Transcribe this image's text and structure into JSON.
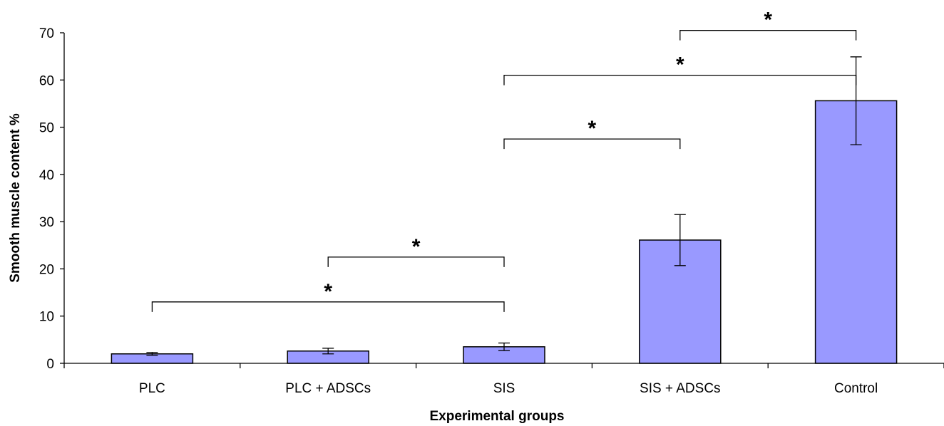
{
  "chart_data": {
    "type": "bar",
    "categories": [
      "PLC",
      "PLC + ADSCs",
      "SIS",
      "SIS + ADSCs",
      "Control"
    ],
    "values": [
      2.0,
      2.6,
      3.5,
      26.1,
      55.6
    ],
    "errors": [
      0.3,
      0.6,
      0.8,
      5.4,
      9.3
    ],
    "xlabel": "Experimental groups",
    "ylabel": "Smooth muscle content %",
    "ylim": [
      0,
      70
    ],
    "yticks": [
      "0",
      "10",
      "20",
      "30",
      "40",
      "50",
      "60",
      "70"
    ],
    "grid": false,
    "bar_color": "#9999ff",
    "significance": [
      {
        "from": "PLC",
        "to": "SIS",
        "y": 13,
        "label": "*"
      },
      {
        "from": "PLC + ADSCs",
        "to": "SIS",
        "y": 22.5,
        "label": "*"
      },
      {
        "from": "SIS",
        "to": "SIS + ADSCs",
        "y": 47.5,
        "label": "*"
      },
      {
        "from": "SIS",
        "to": "Control",
        "y": 61,
        "label": "*"
      },
      {
        "from": "SIS + ADSCs",
        "to": "Control",
        "y": 70.5,
        "label": "*"
      }
    ]
  }
}
